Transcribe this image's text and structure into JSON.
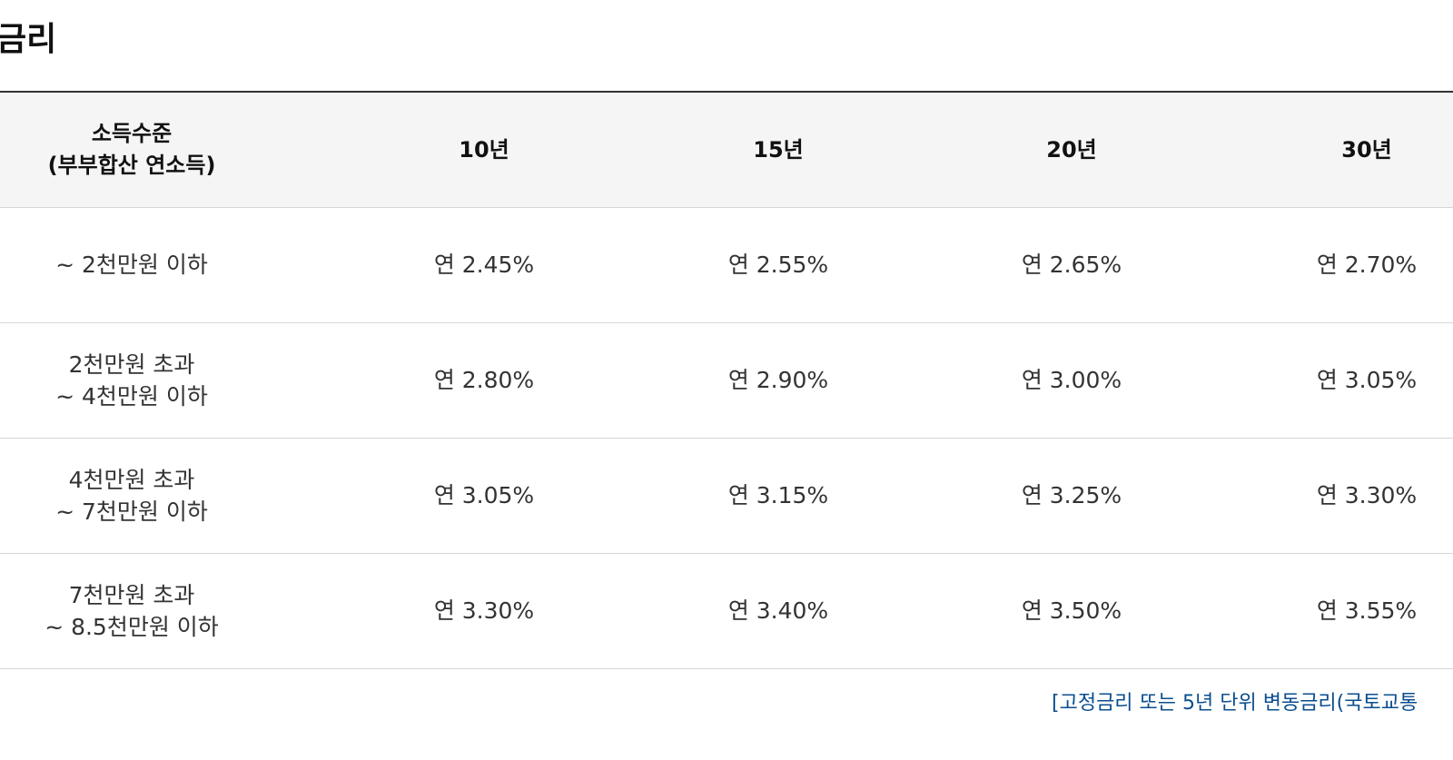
{
  "title": "금리",
  "table": {
    "header": [
      "소득수준\n(부부합산 연소득)",
      "10년",
      "15년",
      "20년",
      "30년"
    ],
    "rows": [
      [
        "~ 2천만원 이하",
        "연 2.45%",
        "연 2.55%",
        "연 2.65%",
        "연 2.70%"
      ],
      [
        "2천만원 초과\n~ 4천만원 이하",
        "연 2.80%",
        "연 2.90%",
        "연 3.00%",
        "연 3.05%"
      ],
      [
        "4천만원 초과\n~ 7천만원 이하",
        "연 3.05%",
        "연 3.15%",
        "연 3.25%",
        "연 3.30%"
      ],
      [
        "7천만원 초과\n~ 8.5천만원 이하",
        "연 3.30%",
        "연 3.40%",
        "연 3.50%",
        "연 3.55%"
      ]
    ]
  },
  "note": "[고정금리 또는 5년 단위 변동금리(국토교통"
}
